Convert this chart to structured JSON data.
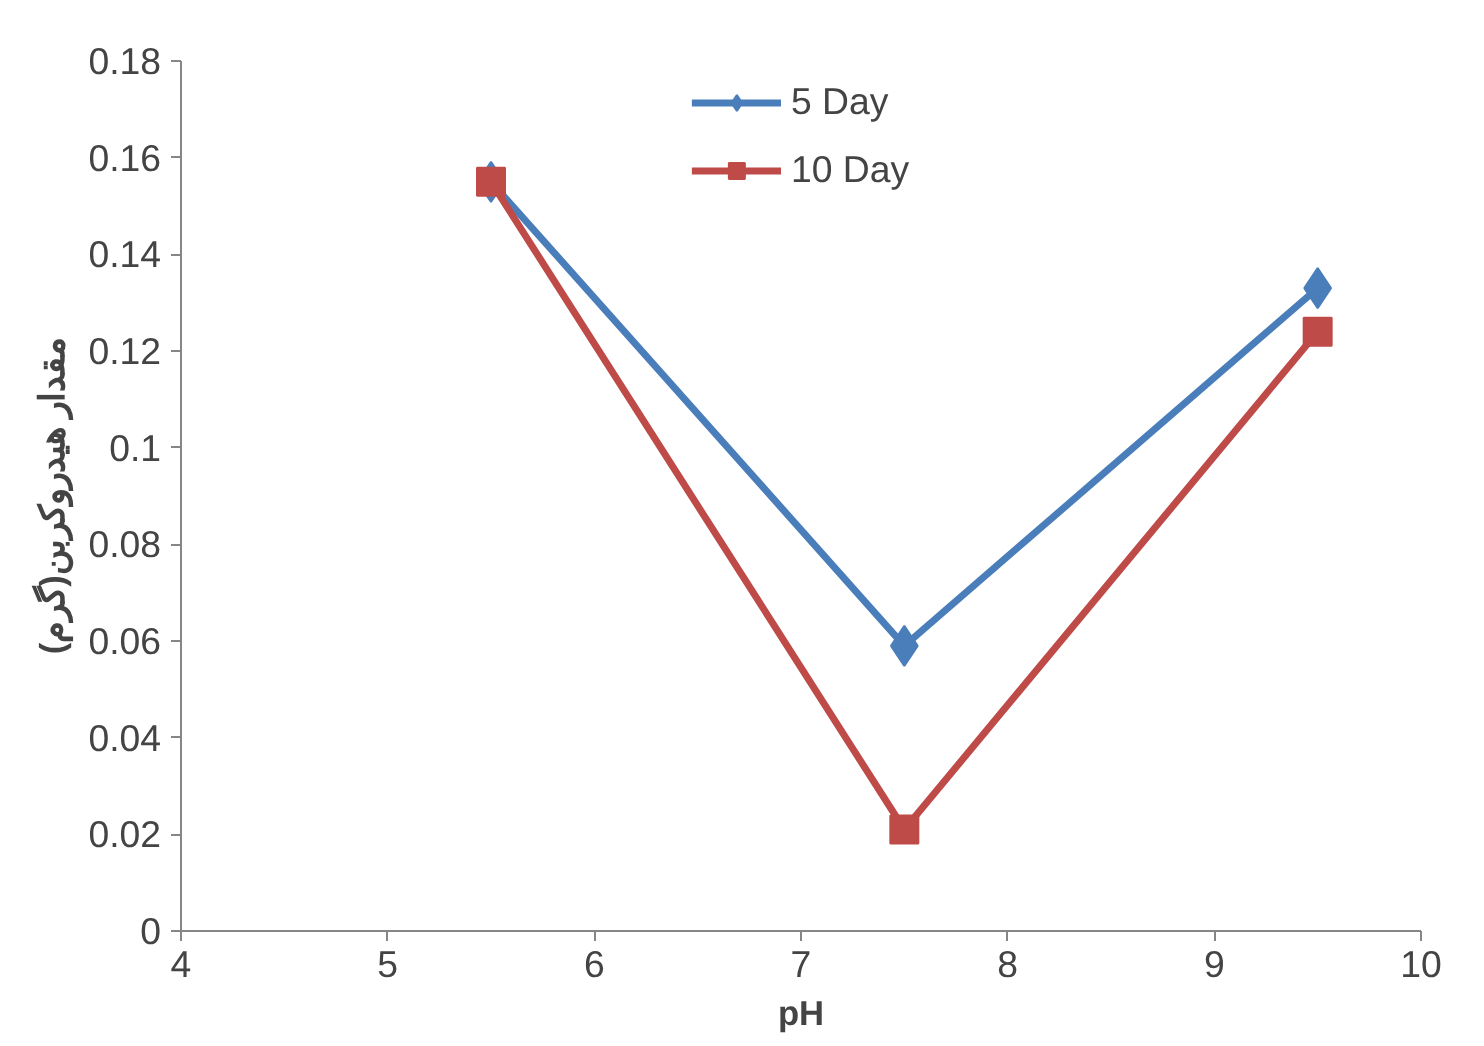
{
  "chart_data": {
    "type": "line",
    "xlabel": "pH",
    "ylabel": "مقدار هیدروکربن(گرم)",
    "x": [
      5.5,
      7.5,
      9.5
    ],
    "series": [
      {
        "name": "5 Day",
        "color": "#4a7ebb",
        "values": [
          0.155,
          0.059,
          0.133
        ],
        "marker": "diamond"
      },
      {
        "name": "10 Day",
        "color": "#be4b48",
        "values": [
          0.155,
          0.021,
          0.124
        ],
        "marker": "square"
      }
    ],
    "xlim": [
      4,
      10
    ],
    "xticks": [
      4,
      5,
      6,
      7,
      8,
      9,
      10
    ],
    "ylim": [
      0,
      0.18
    ],
    "yticks": [
      0,
      0.02,
      0.04,
      0.06,
      0.08,
      0.1,
      0.12,
      0.14,
      0.16,
      0.18
    ],
    "grid": false,
    "legend": "top",
    "line_style": "solid"
  }
}
